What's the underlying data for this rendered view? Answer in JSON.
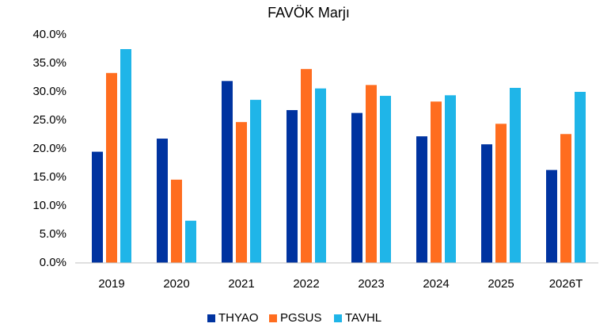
{
  "chart_data": {
    "type": "bar",
    "title": "FAVÖK Marjı",
    "categories": [
      "2019",
      "2020",
      "2021",
      "2022",
      "2023",
      "2024",
      "2025",
      "2026T"
    ],
    "series": [
      {
        "name": "THYAO",
        "color": "#0033a0",
        "values": [
          19.5,
          21.8,
          31.9,
          26.8,
          26.3,
          22.2,
          20.8,
          16.3
        ]
      },
      {
        "name": "PGSUS",
        "color": "#ff6d1f",
        "values": [
          33.3,
          14.6,
          24.7,
          34.0,
          31.2,
          28.3,
          24.4,
          22.6
        ]
      },
      {
        "name": "TAVHL",
        "color": "#1fb5e8",
        "values": [
          37.5,
          7.4,
          28.6,
          30.6,
          29.3,
          29.4,
          30.7,
          30.0
        ]
      }
    ],
    "ylim": [
      0,
      40
    ],
    "yticks": [
      {
        "value": 0,
        "label": "0.0%"
      },
      {
        "value": 5,
        "label": "5.0%"
      },
      {
        "value": 10,
        "label": "10.0%"
      },
      {
        "value": 15,
        "label": "15.0%"
      },
      {
        "value": 20,
        "label": "20.0%"
      },
      {
        "value": 25,
        "label": "25.0%"
      },
      {
        "value": 30,
        "label": "30.0%"
      },
      {
        "value": 35,
        "label": "35.0%"
      },
      {
        "value": 40,
        "label": "40.0%"
      }
    ],
    "grid": false,
    "legend": "bottom"
  }
}
